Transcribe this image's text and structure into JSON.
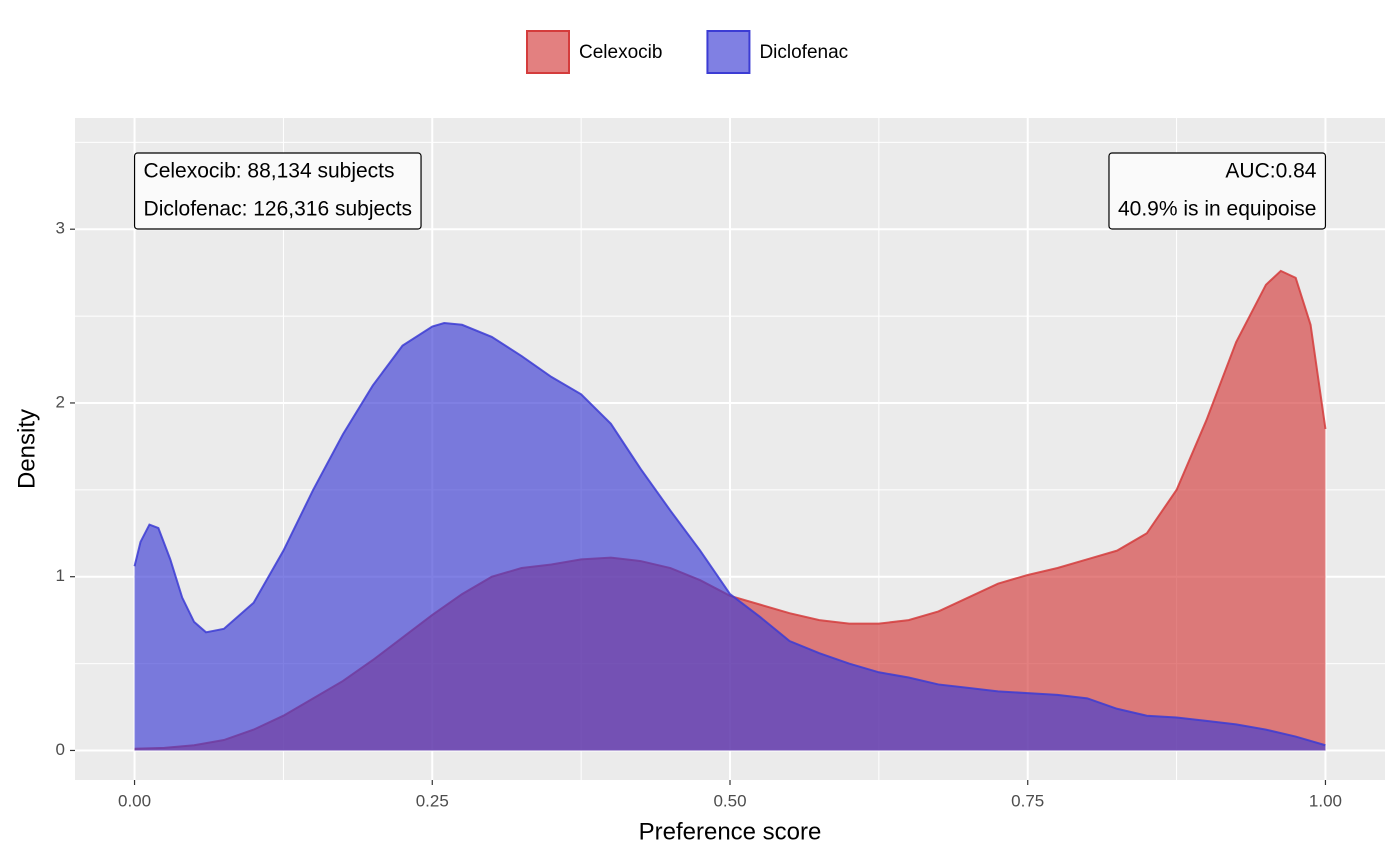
{
  "chart_data": {
    "type": "density",
    "xlabel": "Preference score",
    "ylabel": "Density",
    "xlim": [
      -0.05,
      1.05
    ],
    "ylim": [
      -0.17,
      3.64
    ],
    "xticks": [
      {
        "value": 0,
        "label": "0.00"
      },
      {
        "value": 0.25,
        "label": "0.25"
      },
      {
        "value": 0.5,
        "label": "0.50"
      },
      {
        "value": 0.75,
        "label": "0.75"
      },
      {
        "value": 1,
        "label": "1.00"
      }
    ],
    "yticks": [
      0,
      1,
      2,
      3
    ],
    "x_minor_ticks": [
      0.125,
      0.375,
      0.625,
      0.875
    ],
    "y_minor_ticks": [
      0.5,
      1.5,
      2.5,
      3.5
    ],
    "grid": true,
    "legend": "top",
    "series": [
      {
        "name": "Celexocib",
        "color": "#d43c3c",
        "x": [
          0,
          0.025,
          0.05,
          0.075,
          0.1,
          0.125,
          0.15,
          0.175,
          0.2,
          0.225,
          0.25,
          0.275,
          0.3,
          0.325,
          0.35,
          0.375,
          0.4,
          0.425,
          0.45,
          0.475,
          0.5,
          0.525,
          0.55,
          0.575,
          0.6,
          0.625,
          0.65,
          0.675,
          0.7,
          0.725,
          0.75,
          0.775,
          0.8,
          0.825,
          0.85,
          0.875,
          0.9,
          0.925,
          0.95,
          0.9625,
          0.975,
          0.9875,
          1.0
        ],
        "values": [
          0.01,
          0.015,
          0.03,
          0.06,
          0.12,
          0.2,
          0.3,
          0.4,
          0.52,
          0.65,
          0.78,
          0.9,
          1.0,
          1.05,
          1.07,
          1.1,
          1.11,
          1.09,
          1.05,
          0.98,
          0.89,
          0.84,
          0.79,
          0.75,
          0.73,
          0.73,
          0.75,
          0.8,
          0.88,
          0.96,
          1.01,
          1.05,
          1.1,
          1.15,
          1.25,
          1.5,
          1.9,
          2.35,
          2.68,
          2.76,
          2.72,
          2.45,
          1.85
        ]
      },
      {
        "name": "Diclofenac",
        "color": "#3c3cd4",
        "x": [
          0,
          0.005,
          0.0125,
          0.02,
          0.03,
          0.04,
          0.05,
          0.06,
          0.075,
          0.1,
          0.125,
          0.15,
          0.175,
          0.2,
          0.225,
          0.25,
          0.26,
          0.275,
          0.3,
          0.325,
          0.35,
          0.375,
          0.4,
          0.425,
          0.45,
          0.475,
          0.5,
          0.525,
          0.55,
          0.575,
          0.6,
          0.625,
          0.65,
          0.675,
          0.7,
          0.725,
          0.75,
          0.775,
          0.8,
          0.825,
          0.85,
          0.875,
          0.9,
          0.925,
          0.95,
          0.975,
          1.0
        ],
        "values": [
          1.06,
          1.2,
          1.3,
          1.28,
          1.1,
          0.88,
          0.74,
          0.68,
          0.7,
          0.85,
          1.15,
          1.5,
          1.82,
          2.1,
          2.33,
          2.44,
          2.46,
          2.45,
          2.38,
          2.27,
          2.15,
          2.05,
          1.88,
          1.62,
          1.38,
          1.15,
          0.9,
          0.77,
          0.63,
          0.56,
          0.5,
          0.45,
          0.42,
          0.38,
          0.36,
          0.34,
          0.33,
          0.32,
          0.3,
          0.24,
          0.2,
          0.19,
          0.17,
          0.15,
          0.12,
          0.08,
          0.03
        ]
      }
    ],
    "annotations": [
      {
        "lines": [
          "Celexocib: 88,134 subjects",
          "Diclofenac: 126,316 subjects"
        ]
      },
      {
        "lines": [
          "AUC:0.84",
          "40.9% is in equipoise"
        ]
      }
    ]
  }
}
